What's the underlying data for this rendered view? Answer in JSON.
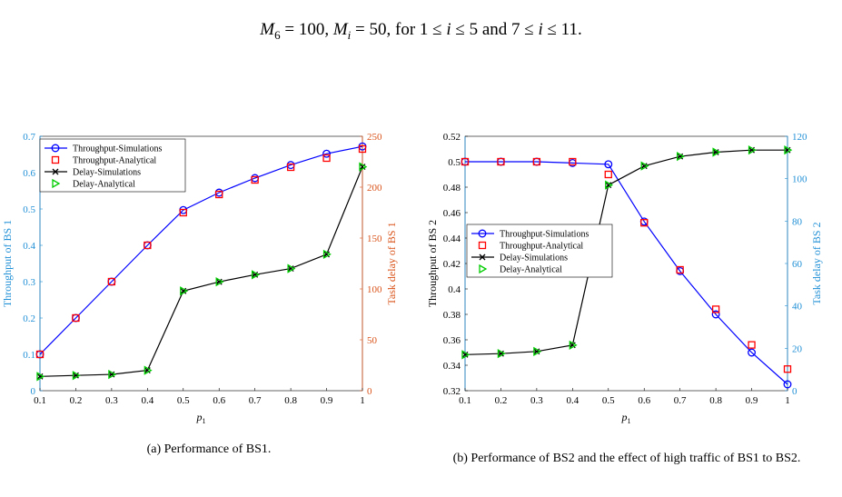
{
  "header_text": "M6 = 100, Mi = 50, for 1 ≤ i ≤ 5 and 7 ≤ i ≤ 11.",
  "colors": {
    "left_axis": "#1f8fd6",
    "right_axis": "#d95319",
    "throughput": "#0000ff",
    "delay": "#000000",
    "analytical_throughput": "#ff0000",
    "analytical_delay": "#00cc00"
  },
  "chart_data": [
    {
      "type": "line",
      "caption": "(a) Performance of BS1.",
      "xlabel": "p1",
      "ylabel_left": "Throughput of BS 1",
      "ylabel_right": "Task delay of BS 1",
      "x": [
        0.1,
        0.2,
        0.3,
        0.4,
        0.5,
        0.6,
        0.7,
        0.8,
        0.9,
        1
      ],
      "xlim": [
        0.1,
        1
      ],
      "xticks": [
        "0.1",
        "0.2",
        "0.3",
        "0.4",
        "0.5",
        "0.6",
        "0.7",
        "0.8",
        "0.9",
        "1"
      ],
      "ylim_left": [
        0,
        0.7
      ],
      "yticks_left": [
        "0",
        "0.1",
        "0.2",
        "0.3",
        "0.4",
        "0.5",
        "0.6",
        "0.7"
      ],
      "ylim_right": [
        0,
        250
      ],
      "yticks_right": [
        "0",
        "50",
        "100",
        "150",
        "200",
        "250"
      ],
      "legend_position": "top-left",
      "series": [
        {
          "name": "Throughput-Simulations",
          "axis": "left",
          "marker": "circle",
          "line": true,
          "values": [
            0.1,
            0.2,
            0.3,
            0.4,
            0.497,
            0.545,
            0.585,
            0.621,
            0.652,
            0.672
          ]
        },
        {
          "name": "Throughput-Analytical",
          "axis": "left",
          "marker": "square",
          "line": false,
          "values": [
            0.1,
            0.2,
            0.3,
            0.4,
            0.49,
            0.54,
            0.58,
            0.615,
            0.64,
            0.665
          ]
        },
        {
          "name": "Delay-Simulations",
          "axis": "right",
          "marker": "x",
          "line": true,
          "values": [
            14,
            15,
            16,
            20,
            98,
            107,
            114,
            120,
            134,
            220
          ]
        },
        {
          "name": "Delay-Analytical",
          "axis": "right",
          "marker": "triangle",
          "line": false,
          "values": [
            14,
            15,
            16,
            20,
            98,
            107,
            114,
            120,
            134,
            220
          ]
        }
      ]
    },
    {
      "type": "line",
      "caption": "(b) Performance of BS2 and the effect of high traffic of BS1 to BS2.",
      "xlabel": "p1",
      "ylabel_left": "Throughput of BS 2",
      "ylabel_right": "Task delay of BS 2",
      "x": [
        0.1,
        0.2,
        0.3,
        0.4,
        0.5,
        0.6,
        0.7,
        0.8,
        0.9,
        1
      ],
      "xlim": [
        0.1,
        1
      ],
      "xticks": [
        "0.1",
        "0.2",
        "0.3",
        "0.4",
        "0.5",
        "0.6",
        "0.7",
        "0.8",
        "0.9",
        "1"
      ],
      "ylim_left": [
        0.32,
        0.52
      ],
      "yticks_left": [
        "0.32",
        "0.34",
        "0.36",
        "0.38",
        "0.4",
        "0.42",
        "0.44",
        "0.46",
        "0.48",
        "0.5",
        "0.52"
      ],
      "ylim_right": [
        0,
        120
      ],
      "yticks_right": [
        "0",
        "20",
        "40",
        "60",
        "80",
        "100",
        "120"
      ],
      "legend_position": "center-left",
      "series": [
        {
          "name": "Throughput-Simulations",
          "axis": "left",
          "marker": "circle",
          "line": true,
          "values": [
            0.5,
            0.5,
            0.5,
            0.499,
            0.498,
            0.453,
            0.414,
            0.38,
            0.35,
            0.325
          ]
        },
        {
          "name": "Throughput-Analytical",
          "axis": "left",
          "marker": "square",
          "line": false,
          "values": [
            0.5,
            0.5,
            0.5,
            0.5,
            0.49,
            0.452,
            0.415,
            0.384,
            0.356,
            0.337
          ]
        },
        {
          "name": "Delay-Simulations",
          "axis": "right",
          "marker": "x",
          "line": true,
          "values": [
            17,
            17.5,
            18.5,
            21.5,
            97,
            106,
            110.5,
            112.5,
            113.5,
            113.5
          ]
        },
        {
          "name": "Delay-Analytical",
          "axis": "right",
          "marker": "triangle",
          "line": false,
          "values": [
            17,
            17.5,
            18.5,
            21.5,
            97,
            106,
            110.5,
            112.5,
            113.5,
            113.5
          ]
        }
      ]
    }
  ]
}
